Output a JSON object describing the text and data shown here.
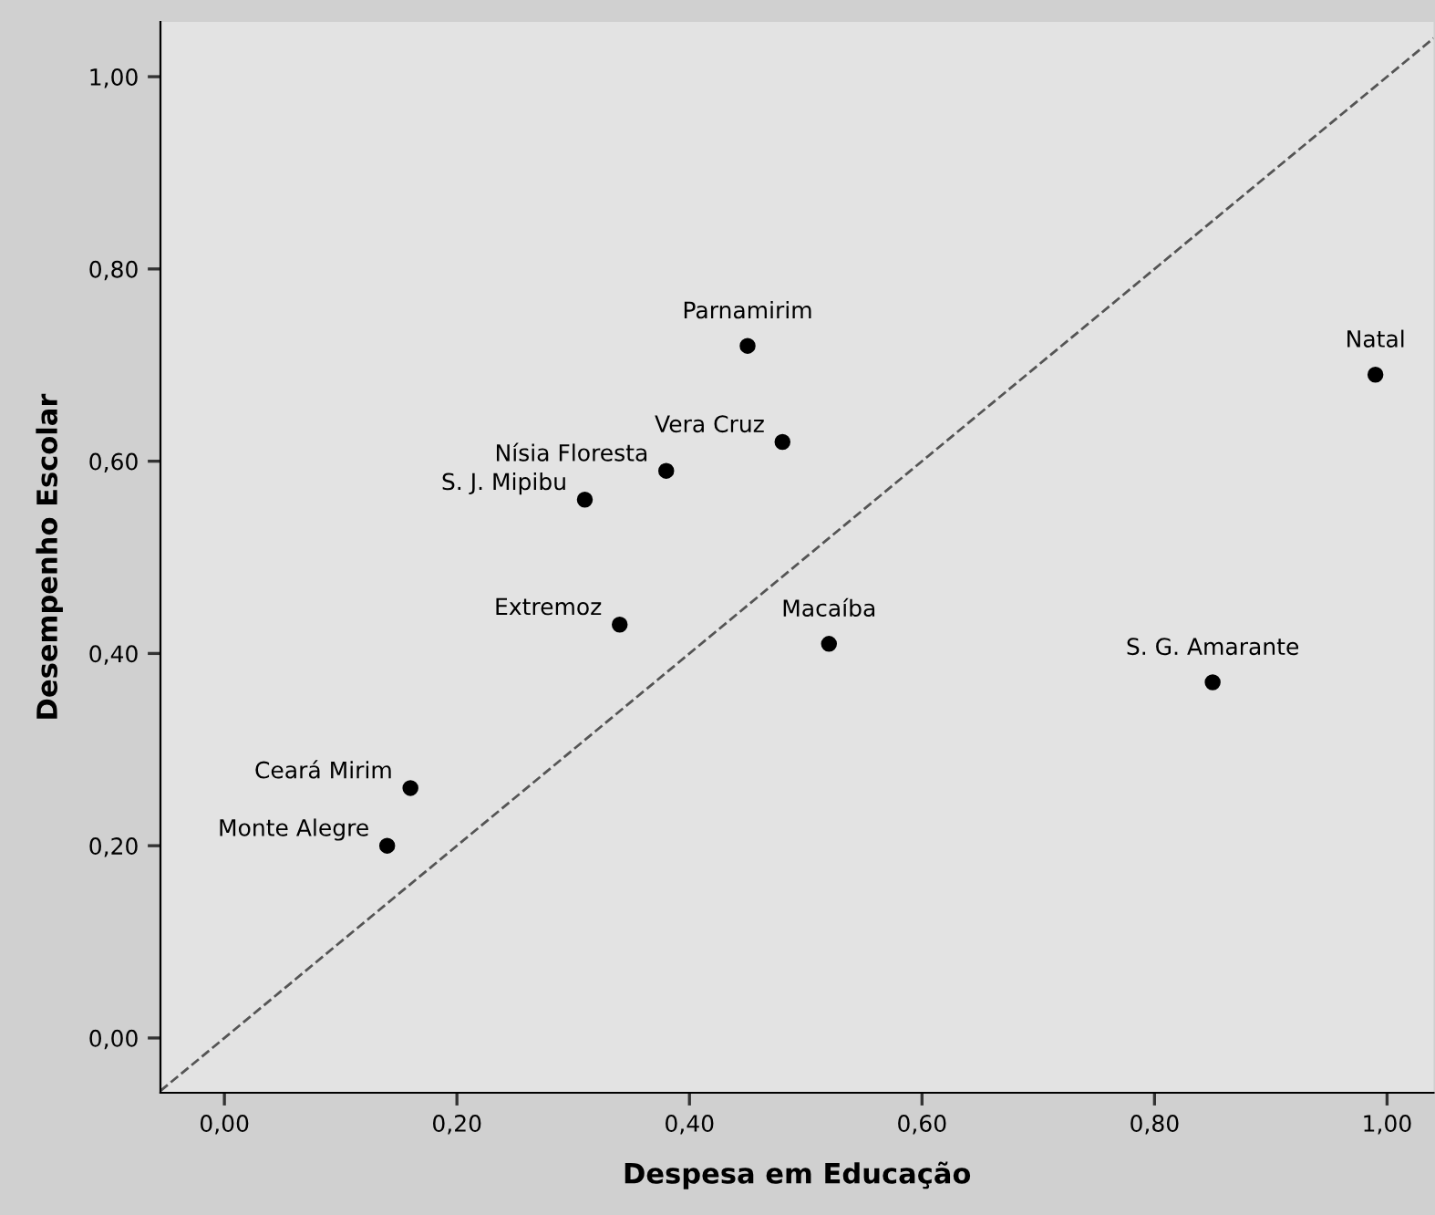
{
  "chart_data": {
    "type": "scatter",
    "xlabel": "Despesa em Educação",
    "ylabel": "Desempenho Escolar",
    "xlim": [
      -0.055,
      1.04
    ],
    "ylim": [
      -0.057,
      1.057
    ],
    "xticks": [
      {
        "value": 0,
        "label": "0,00"
      },
      {
        "value": 0.2,
        "label": "0,20"
      },
      {
        "value": 0.4,
        "label": "0,40"
      },
      {
        "value": 0.6,
        "label": "0,60"
      },
      {
        "value": 0.8,
        "label": "0,80"
      },
      {
        "value": 1,
        "label": "1,00"
      }
    ],
    "yticks": [
      {
        "value": 0,
        "label": "0,00"
      },
      {
        "value": 0.2,
        "label": "0,20"
      },
      {
        "value": 0.4,
        "label": "0,40"
      },
      {
        "value": 0.6,
        "label": "0,60"
      },
      {
        "value": 0.8,
        "label": "0,80"
      },
      {
        "value": 1,
        "label": "1,00"
      }
    ],
    "grid": false,
    "marker": "circle",
    "series": [
      {
        "color": "#000000",
        "x": [
          0.45,
          0.99,
          0.48,
          0.38,
          0.31,
          0.34,
          0.52,
          0.85,
          0.16,
          0.14
        ],
        "values": [
          0.72,
          0.69,
          0.62,
          0.59,
          0.56,
          0.43,
          0.41,
          0.37,
          0.26,
          0.2
        ]
      },
      {
        "type": "line",
        "color": "#555555",
        "line_style": "dashed",
        "marker": "none",
        "x": [
          -0.055,
          1.04
        ],
        "values": [
          -0.055,
          1.04
        ]
      }
    ],
    "annotations": [
      {
        "text": "Parnamirim",
        "x": 0.45,
        "y": 0.72
      },
      {
        "text": "Natal",
        "x": 0.99,
        "y": 0.69
      },
      {
        "text": "Vera Cruz",
        "x": 0.48,
        "y": 0.62
      },
      {
        "text": "Nísia Floresta",
        "x": 0.38,
        "y": 0.59
      },
      {
        "text": "S. J. Mipibu",
        "x": 0.31,
        "y": 0.56
      },
      {
        "text": "Extremoz",
        "x": 0.34,
        "y": 0.43
      },
      {
        "text": "Macaíba",
        "x": 0.52,
        "y": 0.41
      },
      {
        "text": "S. G. Amarante",
        "x": 0.85,
        "y": 0.37
      },
      {
        "text": "Ceará Mirim",
        "x": 0.16,
        "y": 0.26
      },
      {
        "text": "Monte Alegre",
        "x": 0.14,
        "y": 0.2
      }
    ]
  }
}
